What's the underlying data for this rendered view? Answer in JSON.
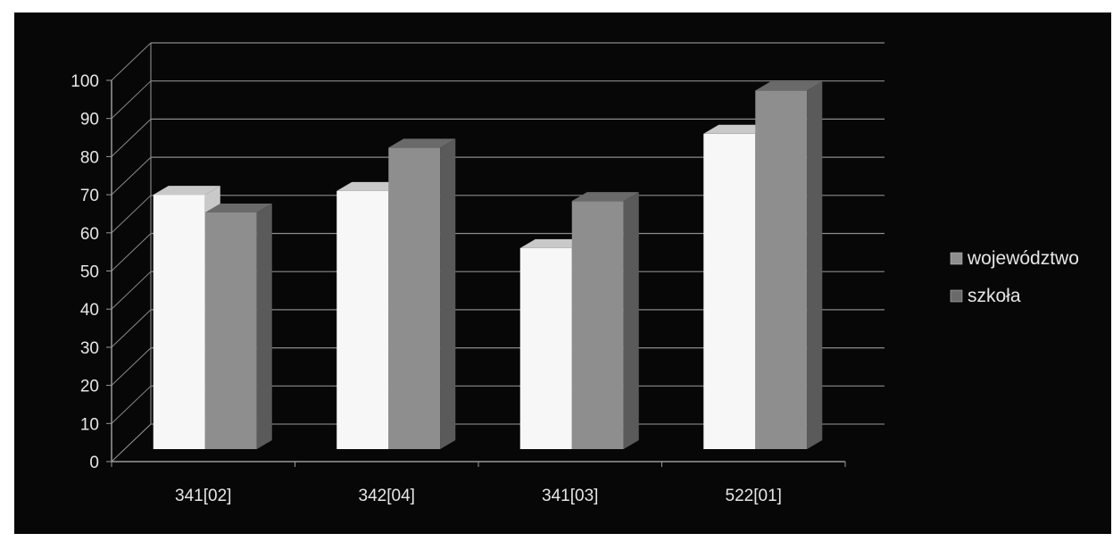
{
  "chart_data": {
    "type": "bar",
    "categories": [
      "341[02]",
      "342[04]",
      "341[03]",
      "522[01]"
    ],
    "series": [
      {
        "name": "województwo",
        "values": [
          70,
          71,
          56,
          86
        ]
      },
      {
        "name": "szkoła",
        "values": [
          63,
          80,
          66,
          95
        ]
      }
    ],
    "y_ticks": [
      "0",
      "10",
      "20",
      "30",
      "40",
      "50",
      "60",
      "70",
      "80",
      "90",
      "100"
    ],
    "ylim": [
      0,
      100
    ],
    "grid": true,
    "legend": "right",
    "colors": {
      "background": "#070707",
      "series_1_front": "#f7f7f7",
      "series_1_top": "#c9c9c9",
      "series_2_front": "#8e8e8e",
      "series_2_top": "#6a6a6a",
      "series_2_side": "#5a5a5a",
      "gridline": "#8a8a8a",
      "wall_line": "#9a9a9a",
      "text": "#e6e6e6"
    }
  }
}
